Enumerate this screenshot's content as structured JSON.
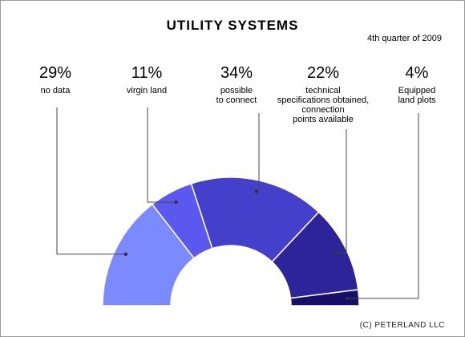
{
  "chart_data": {
    "type": "pie",
    "variant": "half-donut",
    "title": "UTILITY SYSTEMS",
    "subtitle": "4th quarter of 2009",
    "slices": [
      {
        "label": "no data",
        "percent_text": "29%",
        "value": 29,
        "color": "#7b8bff"
      },
      {
        "label": "virgin land",
        "percent_text": "11%",
        "value": 11,
        "color": "#5a58ee"
      },
      {
        "label": "possible to connect",
        "percent_text": "34%",
        "value": 34,
        "color": "#4540cc"
      },
      {
        "label": "technical specifications obtained, connection points available",
        "percent_text": "22%",
        "value": 22,
        "color": "#2c2498"
      },
      {
        "label": "Equipped land plots",
        "percent_text": "4%",
        "value": 4,
        "color": "#16106a"
      }
    ]
  },
  "labels": [
    {
      "pct": "29%",
      "lines": [
        "no data"
      ]
    },
    {
      "pct": "11%",
      "lines": [
        "virgin land"
      ]
    },
    {
      "pct": "34%",
      "lines": [
        "possible",
        "to connect"
      ]
    },
    {
      "pct": "22%",
      "lines": [
        "technical",
        "specifications obtained,",
        "connection",
        "points available"
      ]
    },
    {
      "pct": "4%",
      "lines": [
        "Equipped",
        "land plots"
      ]
    }
  ],
  "footer": "(C) PETERLAND LLC"
}
